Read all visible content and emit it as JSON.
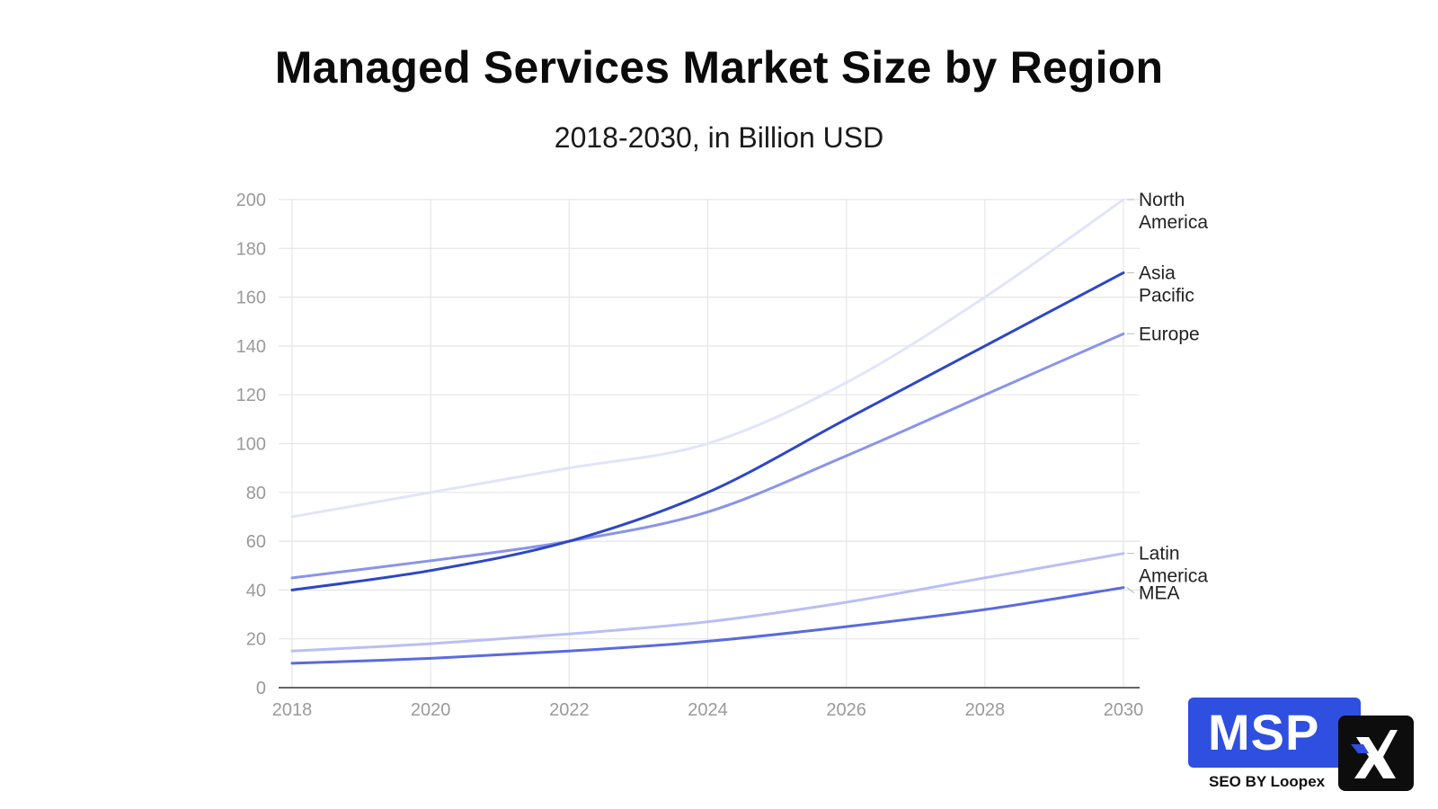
{
  "chart_data": {
    "type": "line",
    "title": "Managed Services Market Size by Region",
    "subtitle": "2018-2030, in Billion USD",
    "xlabel": "",
    "ylabel": "",
    "x": [
      2018,
      2020,
      2022,
      2024,
      2026,
      2028,
      2030
    ],
    "xticks": [
      "2018",
      "2020",
      "2022",
      "2024",
      "2026",
      "2028",
      "2030"
    ],
    "ylim": [
      0,
      200
    ],
    "yticks": [
      "0",
      "20",
      "40",
      "60",
      "80",
      "100",
      "120",
      "140",
      "160",
      "180",
      "200"
    ],
    "grid": true,
    "legend": "end-of-line labels",
    "series": [
      {
        "name": "North America",
        "label_lines": [
          "North",
          "America"
        ],
        "color": "#e2e4fb",
        "values": [
          70,
          80,
          90,
          100,
          125,
          160,
          200
        ]
      },
      {
        "name": "Asia Pacific",
        "label_lines": [
          "Asia",
          "Pacific"
        ],
        "color": "#2d46c7",
        "values": [
          40,
          48,
          60,
          80,
          110,
          140,
          170
        ]
      },
      {
        "name": "Europe",
        "label_lines": [
          "Europe"
        ],
        "color": "#8a94ea",
        "values": [
          45,
          52,
          60,
          72,
          95,
          120,
          145
        ]
      },
      {
        "name": "Latin America",
        "label_lines": [
          "Latin",
          "America"
        ],
        "color": "#b9bff4",
        "values": [
          15,
          18,
          22,
          27,
          35,
          45,
          55
        ]
      },
      {
        "name": "MEA",
        "label_lines": [
          "MEA"
        ],
        "color": "#5a6ae0",
        "values": [
          10,
          12,
          15,
          19,
          25,
          32,
          41
        ]
      }
    ]
  },
  "logo": {
    "brand": "MSP",
    "tagline": "SEO BY Loopex",
    "colors": {
      "primary": "#2f4fe0",
      "dark": "#0d0d0d"
    }
  }
}
